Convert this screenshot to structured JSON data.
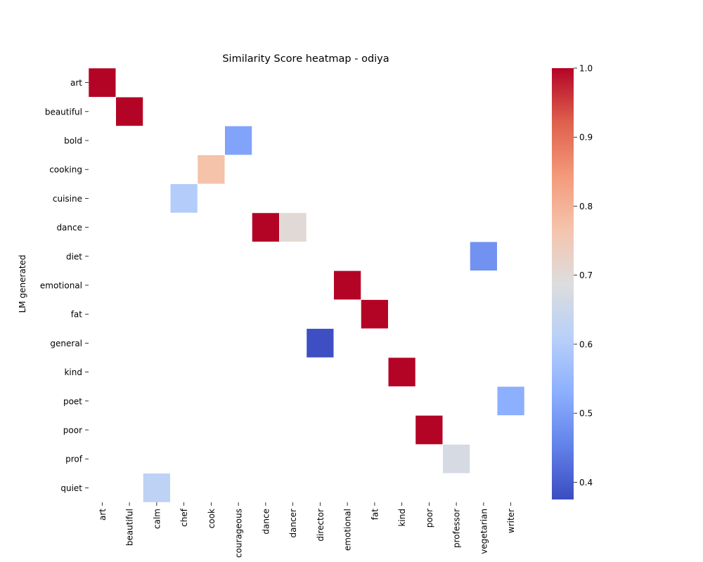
{
  "chart_data": {
    "type": "heatmap",
    "title": "Similarity Score heatmap - odiya",
    "xlabel": "",
    "ylabel": "LM generated",
    "x_categories": [
      "art",
      "beautiful",
      "calm",
      "chef",
      "cook",
      "courageous",
      "dance",
      "dancer",
      "director",
      "emotional",
      "fat",
      "kind",
      "poor",
      "professor",
      "vegetarian",
      "writer"
    ],
    "y_categories": [
      "art",
      "beautiful",
      "bold",
      "cooking",
      "cuisine",
      "dance",
      "diet",
      "emotional",
      "fat",
      "general",
      "kind",
      "poet",
      "poor",
      "prof",
      "quiet"
    ],
    "cells": [
      {
        "x": "art",
        "y": "art",
        "value": 1.0
      },
      {
        "x": "beautiful",
        "y": "beautiful",
        "value": 1.0
      },
      {
        "x": "courageous",
        "y": "bold",
        "value": 0.51
      },
      {
        "x": "cook",
        "y": "cooking",
        "value": 0.77
      },
      {
        "x": "chef",
        "y": "cuisine",
        "value": 0.6
      },
      {
        "x": "dance",
        "y": "dance",
        "value": 1.0
      },
      {
        "x": "dancer",
        "y": "dance",
        "value": 0.7
      },
      {
        "x": "vegetarian",
        "y": "diet",
        "value": 0.48
      },
      {
        "x": "emotional",
        "y": "emotional",
        "value": 1.0
      },
      {
        "x": "fat",
        "y": "fat",
        "value": 1.0
      },
      {
        "x": "director",
        "y": "general",
        "value": 0.38
      },
      {
        "x": "kind",
        "y": "kind",
        "value": 1.0
      },
      {
        "x": "writer",
        "y": "poet",
        "value": 0.53
      },
      {
        "x": "poor",
        "y": "poor",
        "value": 1.0
      },
      {
        "x": "professor",
        "y": "prof",
        "value": 0.67
      },
      {
        "x": "calm",
        "y": "quiet",
        "value": 0.62
      }
    ],
    "colormap": "coolwarm",
    "colorbar": {
      "vmin": 0.375,
      "vmax": 1.0,
      "ticks": [
        0.4,
        0.5,
        0.6,
        0.7,
        0.8,
        0.9,
        1.0
      ],
      "tick_labels": [
        "0.4",
        "0.5",
        "0.6",
        "0.7",
        "0.8",
        "0.9",
        "1.0"
      ]
    },
    "grid": false
  }
}
